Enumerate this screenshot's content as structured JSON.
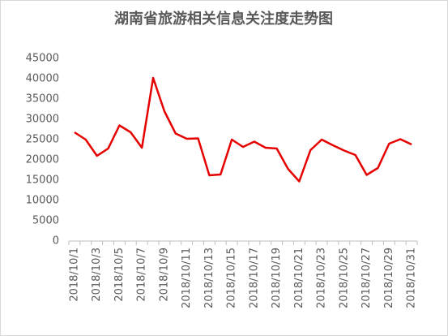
{
  "chart_data": {
    "type": "line",
    "title": "湖南省旅游相关信息关注度走势图",
    "categories": [
      "2018/10/1",
      null,
      "2018/10/3",
      null,
      "2018/10/5",
      null,
      "2018/10/7",
      null,
      "2018/10/9",
      null,
      "2018/10/11",
      null,
      "2018/10/13",
      null,
      "2018/10/15",
      null,
      "2018/10/17",
      null,
      "2018/10/19",
      null,
      "2018/10/21",
      null,
      "2018/10/23",
      null,
      "2018/10/25",
      null,
      "2018/10/27",
      null,
      "2018/10/29",
      null,
      "2018/10/31"
    ],
    "values": [
      26800,
      25000,
      21000,
      22800,
      28500,
      26800,
      23000,
      40200,
      32000,
      26500,
      25200,
      25300,
      16200,
      16400,
      25000,
      23200,
      24500,
      23000,
      22800,
      17800,
      14700,
      22400,
      25000,
      23600,
      22300,
      21200,
      16300,
      18000,
      24000,
      25100,
      23800
    ],
    "color": "#e60000",
    "ylim": [
      0,
      45000
    ],
    "yticks": [
      0,
      5000,
      10000,
      15000,
      20000,
      25000,
      30000,
      35000,
      40000,
      45000
    ],
    "grid": false
  }
}
